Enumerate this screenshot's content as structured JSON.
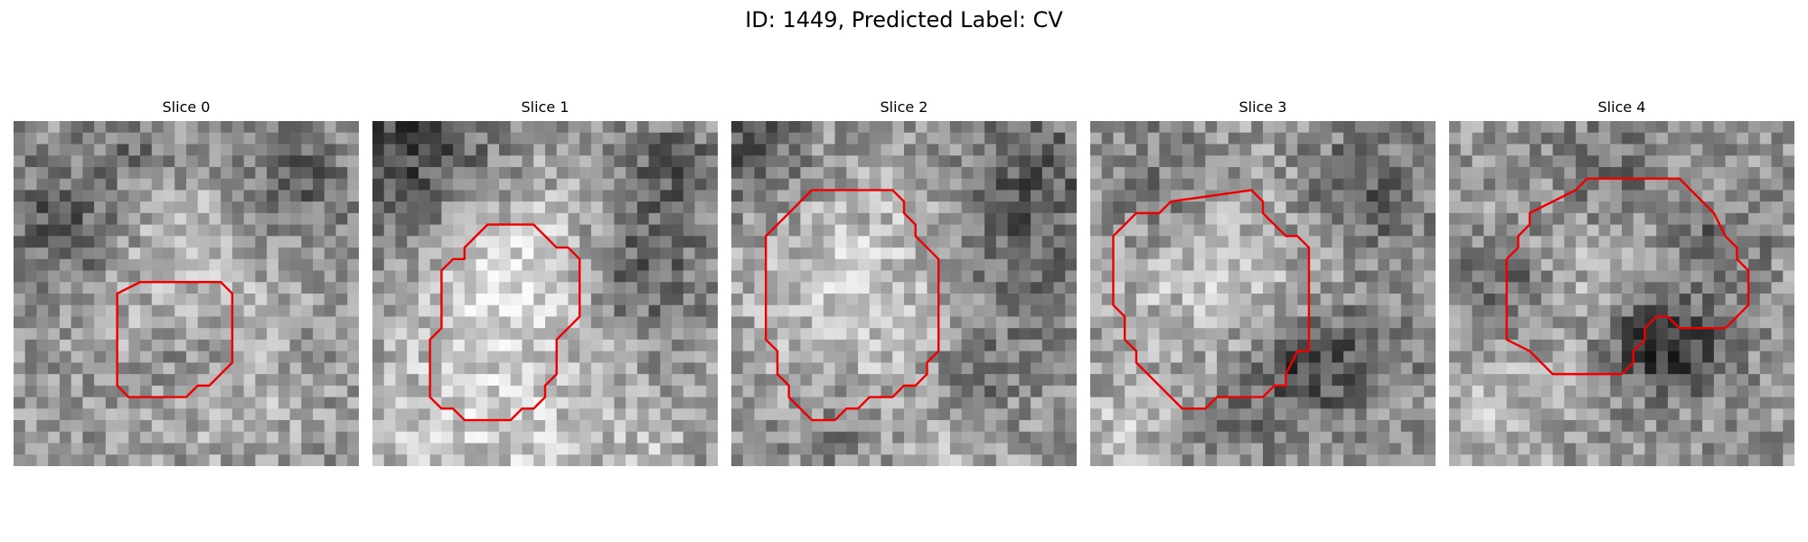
{
  "figure": {
    "title": "ID: 1449, Predicted Label: CV"
  },
  "panels": [
    {
      "title": "Slice 0",
      "contour": [
        [
          11,
          14
        ],
        [
          18,
          14
        ],
        [
          19,
          15
        ],
        [
          19,
          21
        ],
        [
          17,
          23
        ],
        [
          16,
          23
        ],
        [
          15,
          24
        ],
        [
          10,
          24
        ],
        [
          9,
          23
        ],
        [
          9,
          15
        ]
      ],
      "blobs": [
        {
          "cx": 15,
          "cy": 17,
          "r": 6,
          "a": 30
        },
        {
          "cx": 15,
          "cy": 8,
          "r": 5,
          "a": 25
        },
        {
          "cx": 4,
          "cy": 9,
          "r": 4,
          "a": -60
        },
        {
          "cx": 24,
          "cy": 5,
          "r": 4,
          "a": -55
        },
        {
          "cx": 11,
          "cy": 2,
          "r": 3,
          "a": -40
        },
        {
          "cx": 15,
          "cy": 21,
          "r": 3,
          "a": -35
        },
        {
          "cx": 20,
          "cy": 25,
          "r": 4,
          "a": 25
        }
      ]
    },
    {
      "title": "Slice 1",
      "contour": [
        [
          10,
          9
        ],
        [
          14,
          9
        ],
        [
          16,
          11
        ],
        [
          17,
          11
        ],
        [
          18,
          12
        ],
        [
          18,
          17
        ],
        [
          16,
          19
        ],
        [
          16,
          22
        ],
        [
          15,
          23
        ],
        [
          15,
          24
        ],
        [
          14,
          25
        ],
        [
          13,
          25
        ],
        [
          12,
          26
        ],
        [
          8,
          26
        ],
        [
          7,
          25
        ],
        [
          6,
          25
        ],
        [
          5,
          24
        ],
        [
          5,
          19
        ],
        [
          6,
          18
        ],
        [
          6,
          13
        ],
        [
          7,
          12
        ],
        [
          8,
          12
        ],
        [
          8,
          11
        ],
        [
          9,
          10
        ]
      ],
      "blobs": [
        {
          "cx": 12,
          "cy": 14,
          "r": 7,
          "a": 80
        },
        {
          "cx": 3,
          "cy": 3,
          "r": 6,
          "a": -90
        },
        {
          "cx": 23,
          "cy": 13,
          "r": 4,
          "a": -75
        },
        {
          "cx": 26,
          "cy": 4,
          "r": 3,
          "a": -60
        },
        {
          "cx": 3,
          "cy": 27,
          "r": 4,
          "a": 40
        },
        {
          "cx": 13,
          "cy": 28,
          "r": 4,
          "a": 45
        },
        {
          "cx": 24,
          "cy": 28,
          "r": 3,
          "a": 35
        }
      ]
    },
    {
      "title": "Slice 2",
      "contour": [
        [
          7,
          6
        ],
        [
          14,
          6
        ],
        [
          15,
          7
        ],
        [
          15,
          8
        ],
        [
          16,
          9
        ],
        [
          16,
          10
        ],
        [
          17,
          11
        ],
        [
          18,
          12
        ],
        [
          18,
          20
        ],
        [
          17,
          21
        ],
        [
          17,
          22
        ],
        [
          16,
          23
        ],
        [
          15,
          23
        ],
        [
          14,
          24
        ],
        [
          12,
          24
        ],
        [
          11,
          25
        ],
        [
          10,
          25
        ],
        [
          9,
          26
        ],
        [
          7,
          26
        ],
        [
          6,
          25
        ],
        [
          5,
          24
        ],
        [
          5,
          23
        ],
        [
          4,
          22
        ],
        [
          4,
          20
        ],
        [
          3,
          19
        ],
        [
          3,
          10
        ],
        [
          4,
          9
        ],
        [
          5,
          8
        ],
        [
          6,
          7
        ]
      ],
      "blobs": [
        {
          "cx": 11,
          "cy": 15,
          "r": 7,
          "a": 55
        },
        {
          "cx": 1,
          "cy": 2,
          "r": 4,
          "a": -70
        },
        {
          "cx": 26,
          "cy": 5,
          "r": 4,
          "a": -65
        },
        {
          "cx": 25,
          "cy": 14,
          "r": 4,
          "a": -45
        },
        {
          "cx": 21,
          "cy": 23,
          "r": 3,
          "a": -50
        },
        {
          "cx": 9,
          "cy": 27,
          "r": 3,
          "a": -30
        },
        {
          "cx": 20,
          "cy": 27,
          "r": 3,
          "a": 35
        }
      ]
    },
    {
      "title": "Slice 3",
      "contour": [
        [
          6,
          8
        ],
        [
          7,
          7
        ],
        [
          14,
          6
        ],
        [
          15,
          7
        ],
        [
          15,
          8
        ],
        [
          16,
          9
        ],
        [
          17,
          10
        ],
        [
          18,
          10
        ],
        [
          19,
          11
        ],
        [
          19,
          20
        ],
        [
          18,
          20
        ],
        [
          17,
          22
        ],
        [
          17,
          23
        ],
        [
          16,
          23
        ],
        [
          15,
          24
        ],
        [
          11,
          24
        ],
        [
          10,
          25
        ],
        [
          8,
          25
        ],
        [
          6,
          23
        ],
        [
          5,
          22
        ],
        [
          4,
          21
        ],
        [
          4,
          20
        ],
        [
          3,
          19
        ],
        [
          3,
          17
        ],
        [
          2,
          16
        ],
        [
          2,
          10
        ],
        [
          3,
          9
        ],
        [
          4,
          8
        ]
      ],
      "blobs": [
        {
          "cx": 10,
          "cy": 13,
          "r": 7,
          "a": 45
        },
        {
          "cx": 19,
          "cy": 21,
          "r": 3,
          "a": -80
        },
        {
          "cx": 6,
          "cy": 6,
          "r": 4,
          "a": -50
        },
        {
          "cx": 24,
          "cy": 6,
          "r": 4,
          "a": -60
        },
        {
          "cx": 14,
          "cy": 25,
          "r": 4,
          "a": -35
        },
        {
          "cx": 25,
          "cy": 20,
          "r": 3,
          "a": -40
        },
        {
          "cx": 3,
          "cy": 27,
          "r": 3,
          "a": 40
        }
      ]
    },
    {
      "title": "Slice 4",
      "contour": [
        [
          9,
          7
        ],
        [
          11,
          6
        ],
        [
          12,
          5
        ],
        [
          20,
          5
        ],
        [
          22,
          7
        ],
        [
          23,
          8
        ],
        [
          24,
          10
        ],
        [
          25,
          11
        ],
        [
          25,
          12
        ],
        [
          26,
          13
        ],
        [
          26,
          16
        ],
        [
          25,
          17
        ],
        [
          24,
          18
        ],
        [
          20,
          18
        ],
        [
          19,
          17
        ],
        [
          18,
          17
        ],
        [
          17,
          18
        ],
        [
          17,
          19
        ],
        [
          16,
          20
        ],
        [
          16,
          21
        ],
        [
          15,
          22
        ],
        [
          9,
          22
        ],
        [
          8,
          21
        ],
        [
          7,
          20
        ],
        [
          5,
          19
        ],
        [
          5,
          12
        ],
        [
          6,
          11
        ],
        [
          6,
          10
        ],
        [
          7,
          9
        ],
        [
          7,
          8
        ]
      ],
      "blobs": [
        {
          "cx": 14,
          "cy": 12,
          "r": 6,
          "a": 40
        },
        {
          "cx": 17,
          "cy": 19,
          "r": 3,
          "a": -85
        },
        {
          "cx": 14,
          "cy": 5,
          "r": 4,
          "a": -55
        },
        {
          "cx": 5,
          "cy": 14,
          "r": 3,
          "a": -55
        },
        {
          "cx": 23,
          "cy": 11,
          "r": 3,
          "a": -60
        },
        {
          "cx": 21,
          "cy": 20,
          "r": 3,
          "a": -65
        },
        {
          "cx": 4,
          "cy": 26,
          "r": 4,
          "a": 35
        }
      ]
    }
  ],
  "style": {
    "contour_color": "#ee0000",
    "colormap": "gray"
  }
}
